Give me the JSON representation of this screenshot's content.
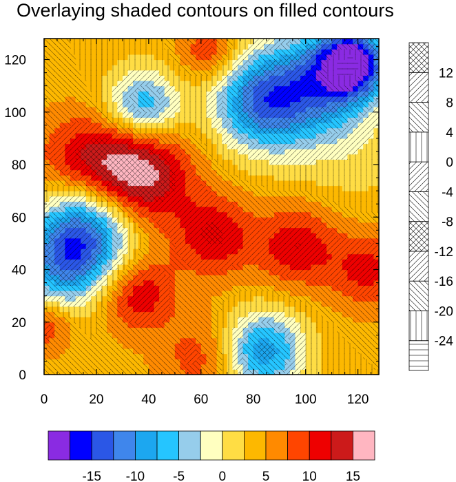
{
  "chart_data": [
    {
      "type": "heatmap",
      "title": "Overlaying shaded contours on filled contours",
      "xlim": [
        0,
        128
      ],
      "ylim": [
        0,
        128
      ],
      "x_ticks": [
        0,
        20,
        40,
        60,
        80,
        100,
        120
      ],
      "y_ticks": [
        0,
        20,
        40,
        60,
        80,
        100,
        120
      ],
      "x_tick_labels": [
        "0",
        "20",
        "40",
        "60",
        "80",
        "100",
        "120"
      ],
      "y_tick_labels": [
        "0",
        "20",
        "40",
        "60",
        "80",
        "100",
        "120"
      ],
      "fill_levels": [
        -17.5,
        -15,
        -12.5,
        -10,
        -7.5,
        -5,
        -2.5,
        0,
        2.5,
        5,
        7.5,
        10,
        12.5,
        15
      ],
      "fill_colors": [
        "#8a2be2",
        "#0000ff",
        "#2b57e6",
        "#3f86ec",
        "#1ca7f0",
        "#25c5ff",
        "#96cdeb",
        "#ffffc0",
        "#ffdd44",
        "#fdb800",
        "#ff8a00",
        "#ff4500",
        "#ee0000",
        "#cc1a1a",
        "#ffb6c1"
      ],
      "field_centers": [
        {
          "x": 118,
          "y": 119,
          "value": -17,
          "radius": 9
        },
        {
          "x": 105,
          "y": 112,
          "value": -8,
          "radius": 14
        },
        {
          "x": 83,
          "y": 104,
          "value": -11,
          "radius": 13
        },
        {
          "x": 38,
          "y": 102,
          "value": -8,
          "radius": 10
        },
        {
          "x": 17,
          "y": 56,
          "value": -10,
          "radius": 13
        },
        {
          "x": 7,
          "y": 42,
          "value": -8,
          "radius": 12
        },
        {
          "x": 84,
          "y": 9,
          "value": -9,
          "radius": 11
        },
        {
          "x": 63,
          "y": 123,
          "value": 10,
          "radius": 8
        },
        {
          "x": 35,
          "y": 77,
          "value": 18,
          "radius": 14
        },
        {
          "x": 13,
          "y": 82,
          "value": 10,
          "radius": 12
        },
        {
          "x": 65,
          "y": 53,
          "value": 12,
          "radius": 11
        },
        {
          "x": 97,
          "y": 49,
          "value": 12,
          "radius": 11
        },
        {
          "x": 124,
          "y": 40,
          "value": 11,
          "radius": 10
        },
        {
          "x": 36,
          "y": 31,
          "value": 12,
          "radius": 10
        },
        {
          "x": 60,
          "y": 7,
          "value": 9,
          "radius": 11
        },
        {
          "x": 1,
          "y": 19,
          "value": 10,
          "radius": 7
        },
        {
          "x": 115,
          "y": 90,
          "value": 1,
          "radius": 18
        }
      ],
      "field_background": 4,
      "colorbar_labels": [
        "-15",
        "-10",
        "-5",
        "0",
        "5",
        "10",
        "15"
      ],
      "grid": false
    },
    {
      "type": "heatmap",
      "title": "",
      "pattern_levels": [
        -24,
        -20,
        -16,
        -12,
        -8,
        -4,
        0,
        4,
        8,
        12
      ],
      "patterns_bottom_to_top": [
        "horizontal",
        "vertical",
        "diag-down",
        "diag-up",
        "crosshatch",
        "diag-down",
        "diag-up",
        "vertical",
        "diag-down",
        "diag-up",
        "crosshatch"
      ],
      "colorbar_labels": [
        "12",
        "8",
        "4",
        "0",
        "-4",
        "-8",
        "-12",
        "-16",
        "-20",
        "-24"
      ]
    }
  ]
}
